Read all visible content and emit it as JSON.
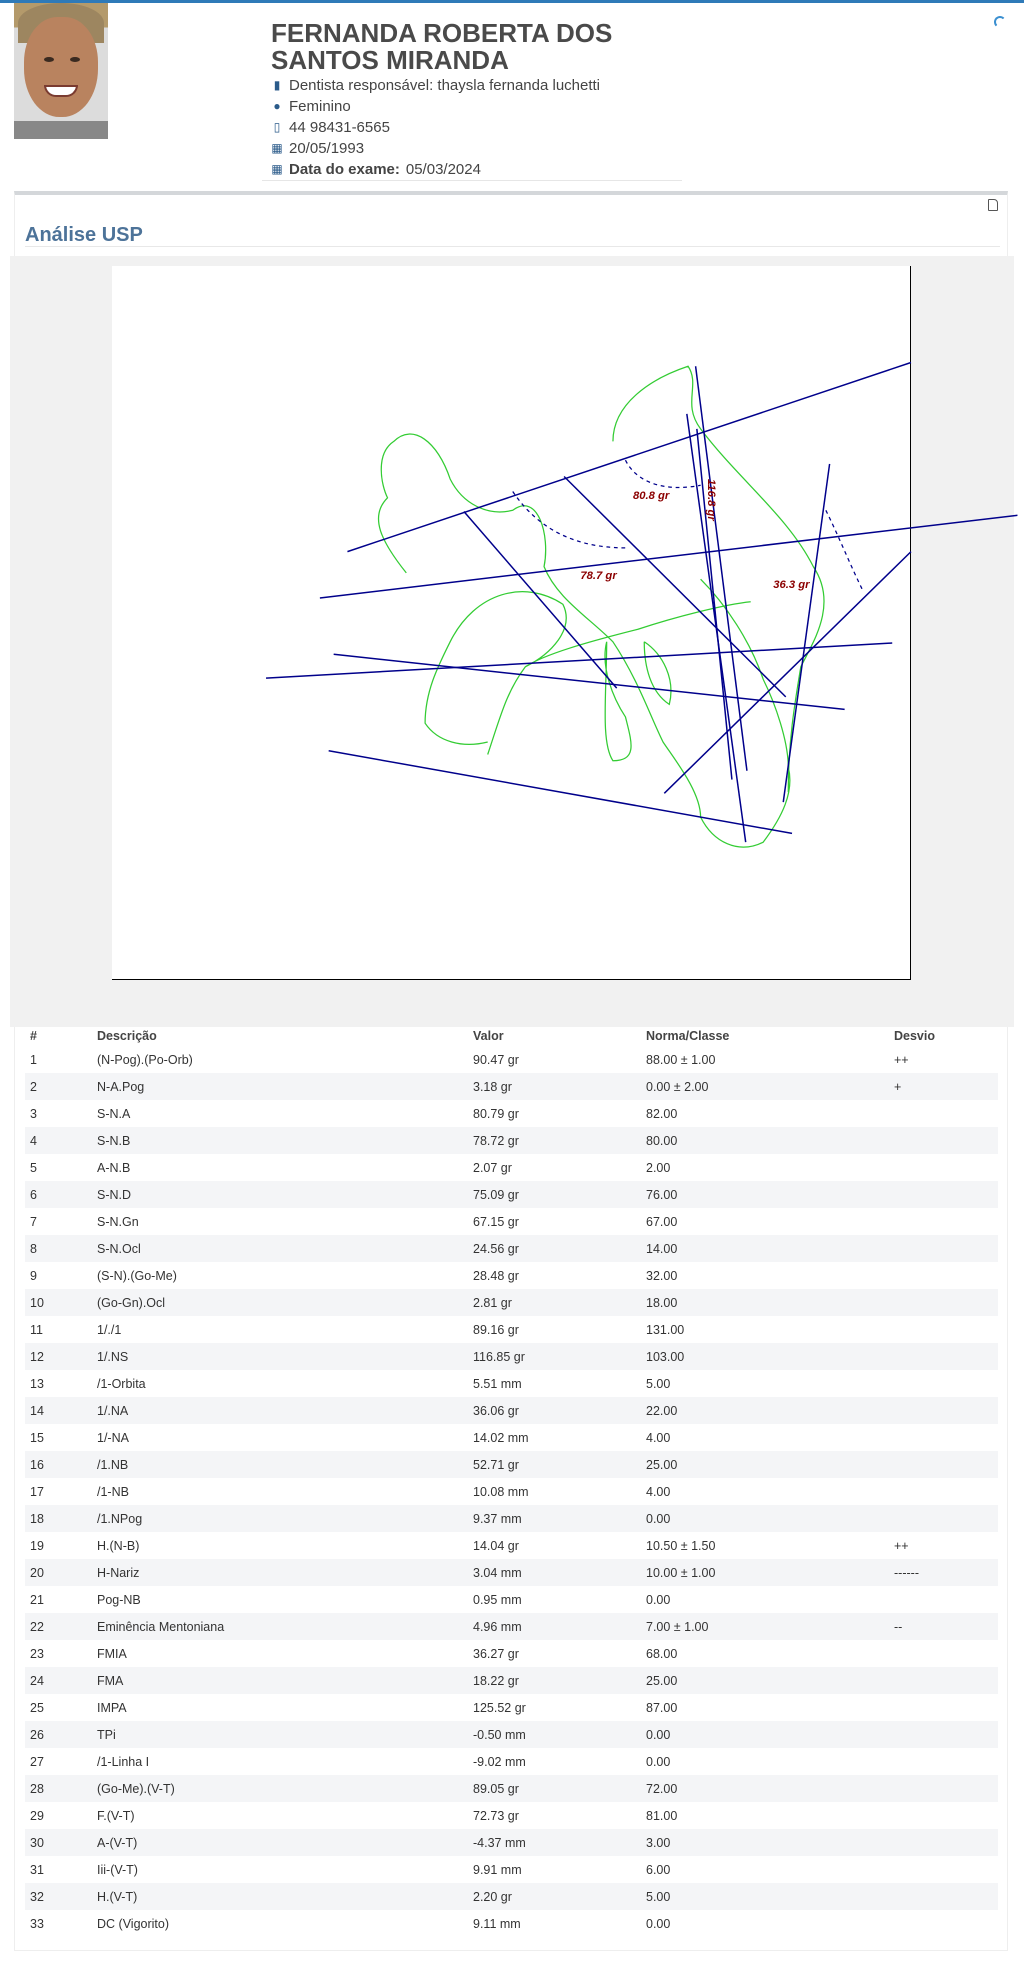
{
  "patient": {
    "name": "FERNANDA ROBERTA DOS SANTOS MIRANDA",
    "dentist": "Dentista responsável: thaysla fernanda luchetti",
    "gender": "Feminino",
    "phone": "44 98431-6565",
    "birthdate": "20/05/1993",
    "exam_date_label": "Data do exame:",
    "exam_date": "05/03/2024"
  },
  "section_title": "Análise USP",
  "tracing_labels": {
    "sna": "80.8 gr",
    "ns": "116.8 gr",
    "snb": "78.7 gr",
    "fmia": "36.3 gr"
  },
  "colors": {
    "accent": "#2f7ab8",
    "title": "#4d7399",
    "tracing_lines": "#00008b",
    "tracing_soft": "#33cc33",
    "tracing_labels": "#8b0000"
  },
  "table": {
    "headers": [
      "#",
      "Descrição",
      "Valor",
      "Norma/Classe",
      "Desvio"
    ],
    "rows": [
      [
        "1",
        "(N-Pog).(Po-Orb)",
        "90.47 gr",
        "88.00 ± 1.00",
        "++"
      ],
      [
        "2",
        "N-A.Pog",
        "3.18 gr",
        "0.00 ± 2.00",
        "+"
      ],
      [
        "3",
        "S-N.A",
        "80.79 gr",
        "82.00",
        ""
      ],
      [
        "4",
        "S-N.B",
        "78.72 gr",
        "80.00",
        ""
      ],
      [
        "5",
        "A-N.B",
        "2.07 gr",
        "2.00",
        ""
      ],
      [
        "6",
        "S-N.D",
        "75.09 gr",
        "76.00",
        ""
      ],
      [
        "7",
        "S-N.Gn",
        "67.15 gr",
        "67.00",
        ""
      ],
      [
        "8",
        "S-N.Ocl",
        "24.56 gr",
        "14.00",
        ""
      ],
      [
        "9",
        "(S-N).(Go-Me)",
        "28.48 gr",
        "32.00",
        ""
      ],
      [
        "10",
        "(Go-Gn).Ocl",
        "2.81 gr",
        "18.00",
        ""
      ],
      [
        "11",
        "1/./1",
        "89.16 gr",
        "131.00",
        ""
      ],
      [
        "12",
        "1/.NS",
        "116.85 gr",
        "103.00",
        ""
      ],
      [
        "13",
        "/1-Orbita",
        "5.51 mm",
        "5.00",
        ""
      ],
      [
        "14",
        "1/.NA",
        "36.06 gr",
        "22.00",
        ""
      ],
      [
        "15",
        "1/-NA",
        "14.02 mm",
        "4.00",
        ""
      ],
      [
        "16",
        "/1.NB",
        "52.71 gr",
        "25.00",
        ""
      ],
      [
        "17",
        "/1-NB",
        "10.08 mm",
        "4.00",
        ""
      ],
      [
        "18",
        "/1.NPog",
        "9.37 mm",
        "0.00",
        ""
      ],
      [
        "19",
        "H.(N-B)",
        "14.04 gr",
        "10.50 ± 1.50",
        "++"
      ],
      [
        "20",
        "H-Nariz",
        "3.04 mm",
        "10.00 ± 1.00",
        "------"
      ],
      [
        "21",
        "Pog-NB",
        "0.95 mm",
        "0.00",
        ""
      ],
      [
        "22",
        "Eminência Mentoniana",
        "4.96 mm",
        "7.00 ± 1.00",
        "--"
      ],
      [
        "23",
        "FMIA",
        "36.27 gr",
        "68.00",
        ""
      ],
      [
        "24",
        "FMA",
        "18.22 gr",
        "25.00",
        ""
      ],
      [
        "25",
        "IMPA",
        "125.52 gr",
        "87.00",
        ""
      ],
      [
        "26",
        "TPi",
        "-0.50 mm",
        "0.00",
        ""
      ],
      [
        "27",
        "/1-Linha I",
        "-9.02 mm",
        "0.00",
        ""
      ],
      [
        "28",
        "(Go-Me).(V-T)",
        "89.05 gr",
        "72.00",
        ""
      ],
      [
        "29",
        "F.(V-T)",
        "72.73 gr",
        "81.00",
        ""
      ],
      [
        "30",
        "A-(V-T)",
        "-4.37 mm",
        "3.00",
        ""
      ],
      [
        "31",
        "Iii-(V-T)",
        "9.91 mm",
        "6.00",
        ""
      ],
      [
        "32",
        "H.(V-T)",
        "2.20 gr",
        "5.00",
        ""
      ],
      [
        "33",
        "DC (Vigorito)",
        "9.11 mm",
        "0.00",
        ""
      ]
    ]
  }
}
